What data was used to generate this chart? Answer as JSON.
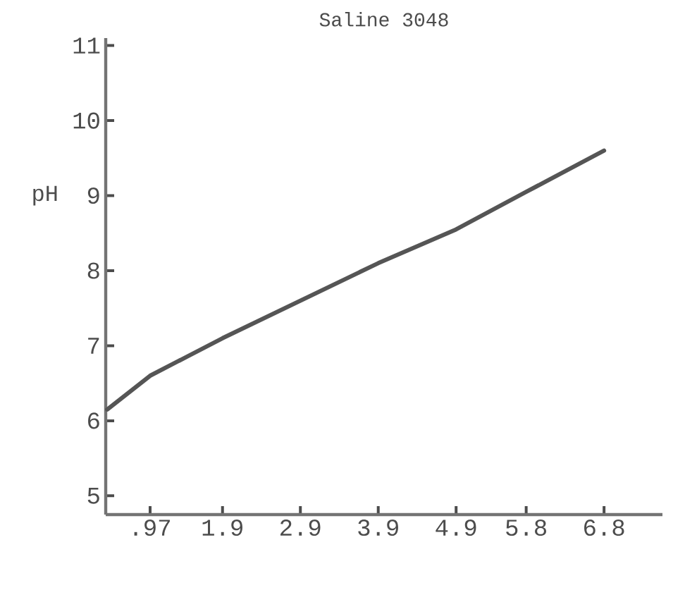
{
  "chart_data": {
    "type": "line",
    "title": "Saline 3048",
    "ylabel": "pH",
    "x": [
      0.42,
      0.97,
      1.9,
      2.9,
      3.9,
      4.9,
      5.8,
      6.8
    ],
    "series": [
      {
        "color": "#555555",
        "values": [
          6.15,
          6.6,
          7.1,
          7.6,
          8.1,
          8.55,
          9.05,
          9.6
        ]
      }
    ],
    "xlim": [
      0.4,
      7.55
    ],
    "ylim": [
      4.75,
      11.1
    ],
    "xticks": [
      {
        "value": 0.97,
        "label": ".97"
      },
      {
        "value": 1.9,
        "label": "1.9"
      },
      {
        "value": 2.9,
        "label": "2.9"
      },
      {
        "value": 3.9,
        "label": "3.9"
      },
      {
        "value": 4.9,
        "label": "4.9"
      },
      {
        "value": 5.8,
        "label": "5.8"
      },
      {
        "value": 6.8,
        "label": "6.8"
      }
    ],
    "yticks": [
      5,
      6,
      7,
      8,
      9,
      10,
      11
    ],
    "grid": false,
    "marker": "none",
    "line_style": "solid"
  }
}
